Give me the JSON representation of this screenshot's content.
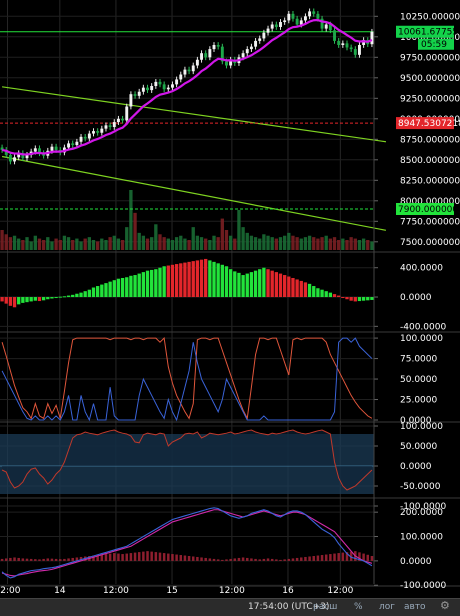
{
  "colors": {
    "up": "#22e33b",
    "down": "#e3262b",
    "ema": "#d016e8",
    "trend": "#7ed321",
    "priceTag": "#13d24a",
    "redLine": "#e3262b",
    "rsiLine": "#e0563b",
    "stochBlue": "#3a63d8",
    "blueArea": "#1b3b55"
  },
  "statusbar": {
    "time": "17:54:00 (UTC+3)",
    "btn_range": "расш",
    "btn_pct": "%",
    "btn_log": "лог",
    "btn_auto": "авто",
    "gear": "gear-icon"
  },
  "chart_data": [
    {
      "type": "candlestick",
      "name": "price",
      "ylim": [
        7400,
        10400
      ],
      "yticks": [
        "10250.00000000",
        "10000.00000000",
        "9750.00000000",
        "9500.00000000",
        "9250.00000000",
        "9000.00000000",
        "8750.00000000",
        "8500.00000000",
        "8250.00000000",
        "8000.00000000",
        "7750.00000000",
        "7500.00000000"
      ],
      "ytick_values": [
        10250,
        10000,
        9750,
        9500,
        9250,
        9000,
        8750,
        8500,
        8250,
        8000,
        7750,
        7500
      ],
      "close": [
        8620,
        8560,
        8480,
        8530,
        8580,
        8520,
        8560,
        8600,
        8640,
        8580,
        8550,
        8610,
        8660,
        8620,
        8590,
        8650,
        8700,
        8680,
        8720,
        8780,
        8760,
        8820,
        8850,
        8830,
        8880,
        8920,
        8900,
        8960,
        9000,
        8980,
        9150,
        9300,
        9280,
        9330,
        9380,
        9350,
        9400,
        9450,
        9420,
        9360,
        9380,
        9420,
        9480,
        9540,
        9600,
        9580,
        9650,
        9720,
        9800,
        9750,
        9850,
        9900,
        9880,
        9700,
        9650,
        9720,
        9680,
        9750,
        9800,
        9850,
        9880,
        9950,
        9980,
        10050,
        10100,
        10150,
        10120,
        10180,
        10200,
        10280,
        10220,
        10150,
        10200,
        10250,
        10310,
        10280,
        10220,
        10100,
        10150,
        10080,
        9950,
        9900,
        9920,
        9870,
        9850,
        9780,
        9900,
        9960,
        9910,
        10061
      ],
      "open": [
        8650,
        8620,
        8560,
        8480,
        8530,
        8580,
        8520,
        8560,
        8600,
        8640,
        8580,
        8550,
        8610,
        8660,
        8620,
        8590,
        8650,
        8700,
        8680,
        8720,
        8780,
        8760,
        8820,
        8850,
        8830,
        8880,
        8920,
        8900,
        8960,
        9000,
        8980,
        9150,
        9300,
        9280,
        9330,
        9380,
        9350,
        9400,
        9450,
        9420,
        9360,
        9380,
        9420,
        9480,
        9540,
        9600,
        9580,
        9650,
        9720,
        9800,
        9750,
        9850,
        9900,
        9880,
        9700,
        9650,
        9720,
        9680,
        9750,
        9800,
        9850,
        9880,
        9950,
        9980,
        10050,
        10100,
        10150,
        10120,
        10180,
        10200,
        10280,
        10220,
        10150,
        10200,
        10250,
        10310,
        10280,
        10220,
        10100,
        10150,
        10080,
        9950,
        9900,
        9920,
        9870,
        9850,
        9780,
        9900,
        9960,
        9910
      ],
      "volume": [
        1.4,
        1.1,
        0.9,
        1.0,
        0.8,
        0.7,
        0.9,
        0.6,
        1.0,
        0.8,
        0.7,
        0.9,
        0.6,
        0.8,
        0.7,
        1.0,
        0.9,
        0.7,
        0.8,
        0.6,
        0.8,
        0.9,
        0.7,
        0.6,
        0.8,
        0.7,
        0.9,
        1.0,
        0.8,
        0.7,
        1.6,
        4.2,
        2.6,
        1.2,
        1.0,
        0.8,
        0.9,
        1.8,
        1.1,
        0.9,
        0.8,
        0.7,
        0.9,
        1.0,
        0.8,
        0.7,
        1.6,
        1.0,
        0.9,
        0.8,
        0.7,
        1.0,
        0.9,
        2.2,
        1.4,
        1.0,
        0.8,
        2.8,
        1.6,
        1.2,
        1.0,
        0.9,
        0.8,
        1.1,
        1.0,
        0.9,
        0.8,
        0.9,
        1.0,
        1.2,
        1.0,
        0.9,
        0.8,
        0.9,
        1.0,
        0.9,
        0.8,
        0.9,
        1.0,
        0.8,
        0.9,
        0.7,
        0.8,
        0.7,
        0.9,
        0.8,
        0.7,
        0.8,
        0.7,
        0.6
      ],
      "price_tag": "10061.67755855",
      "price_sub": "05:59",
      "red_level": 8947.53072182,
      "red_tag": "8947.53072182",
      "green_level": 7900,
      "green_tag": "7900.00000000",
      "trendlines": [
        {
          "x0": 0,
          "y0": 9390,
          "x1": 89,
          "y1": 8720
        },
        {
          "x0": 0,
          "y0": 8540,
          "x1": 89,
          "y1": 7640
        }
      ]
    },
    {
      "type": "bar",
      "name": "macd_histogram",
      "ylim": [
        -450,
        560
      ],
      "yticks": [
        "400.0000",
        "0.0000",
        "-400.0000"
      ],
      "ytick_values": [
        400,
        0,
        -400
      ],
      "values": [
        -60,
        -90,
        -120,
        -140,
        -100,
        -80,
        -70,
        -60,
        -50,
        -55,
        -45,
        -30,
        -20,
        -10,
        5,
        10,
        20,
        30,
        45,
        60,
        80,
        100,
        130,
        150,
        170,
        190,
        210,
        230,
        250,
        260,
        270,
        290,
        300,
        320,
        340,
        360,
        370,
        380,
        400,
        420,
        430,
        440,
        450,
        460,
        470,
        480,
        490,
        500,
        510,
        520,
        500,
        480,
        460,
        440,
        420,
        380,
        350,
        330,
        300,
        320,
        340,
        360,
        380,
        400,
        380,
        360,
        340,
        320,
        300,
        280,
        260,
        240,
        220,
        200,
        180,
        150,
        120,
        100,
        80,
        60,
        40,
        20,
        -10,
        -30,
        -50,
        -60,
        -55,
        -50,
        -45,
        -40
      ],
      "up_flags": [
        0,
        0,
        0,
        0,
        1,
        1,
        1,
        1,
        1,
        0,
        1,
        1,
        1,
        1,
        1,
        1,
        1,
        1,
        1,
        1,
        1,
        1,
        1,
        1,
        1,
        1,
        1,
        1,
        1,
        1,
        1,
        1,
        1,
        1,
        1,
        1,
        1,
        1,
        1,
        1,
        0,
        0,
        0,
        0,
        0,
        0,
        0,
        0,
        0,
        0,
        1,
        1,
        1,
        1,
        1,
        1,
        1,
        1,
        1,
        1,
        1,
        1,
        1,
        1,
        0,
        0,
        0,
        0,
        0,
        0,
        0,
        0,
        0,
        0,
        1,
        1,
        1,
        1,
        1,
        1,
        0,
        0,
        0,
        0,
        0,
        0,
        1,
        1,
        1,
        1
      ]
    },
    {
      "type": "line",
      "name": "stochastic",
      "ylim": [
        0,
        105
      ],
      "yticks": [
        "100.0000",
        "75.0000",
        "50.0000",
        "25.0000",
        "0.0000"
      ],
      "ytick_values": [
        100,
        75,
        50,
        25,
        0
      ],
      "series": [
        {
          "color": "#e0563b",
          "values": [
            95,
            78,
            60,
            42,
            28,
            15,
            10,
            2,
            20,
            5,
            2,
            20,
            8,
            18,
            2,
            35,
            70,
            98,
            100,
            100,
            100,
            100,
            100,
            100,
            100,
            100,
            98,
            100,
            100,
            100,
            100,
            98,
            100,
            100,
            98,
            100,
            100,
            100,
            95,
            100,
            65,
            45,
            30,
            20,
            10,
            2,
            20,
            98,
            100,
            100,
            98,
            100,
            100,
            85,
            70,
            55,
            40,
            25,
            12,
            2,
            40,
            80,
            100,
            100,
            98,
            100,
            100,
            85,
            70,
            55,
            98,
            100,
            98,
            100,
            100,
            100,
            100,
            100,
            95,
            80,
            70,
            60,
            50,
            40,
            30,
            22,
            15,
            10,
            5,
            2
          ]
        },
        {
          "color": "#3a63d8",
          "values": [
            60,
            50,
            40,
            30,
            20,
            10,
            2,
            0,
            5,
            0,
            0,
            5,
            0,
            5,
            0,
            10,
            30,
            0,
            0,
            30,
            10,
            0,
            20,
            0,
            0,
            0,
            40,
            5,
            0,
            0,
            0,
            0,
            0,
            30,
            50,
            40,
            30,
            20,
            10,
            2,
            25,
            10,
            0,
            20,
            40,
            60,
            95,
            70,
            50,
            40,
            30,
            20,
            10,
            25,
            50,
            40,
            30,
            20,
            10,
            0,
            0,
            0,
            0,
            5,
            0,
            0,
            0,
            0,
            0,
            0,
            0,
            0,
            0,
            0,
            0,
            0,
            0,
            0,
            0,
            0,
            10,
            95,
            100,
            100,
            95,
            100,
            90,
            85,
            80,
            75
          ]
        }
      ]
    },
    {
      "type": "area",
      "name": "rsi_band",
      "ylim": [
        -75,
        105
      ],
      "yticks": [
        "100.0000",
        "50.0000",
        "0.0000",
        "-50.0000",
        "-100.0000"
      ],
      "ytick_values": [
        100,
        50,
        0,
        -50,
        -100
      ],
      "values": [
        -10,
        -15,
        -40,
        -55,
        -50,
        -40,
        -20,
        -8,
        -5,
        -20,
        -30,
        -45,
        -35,
        -20,
        -10,
        10,
        40,
        70,
        78,
        80,
        85,
        82,
        80,
        78,
        82,
        85,
        88,
        90,
        85,
        82,
        80,
        75,
        60,
        58,
        78,
        82,
        80,
        78,
        82,
        80,
        50,
        60,
        65,
        70,
        80,
        82,
        80,
        85,
        70,
        75,
        82,
        80,
        78,
        80,
        82,
        85,
        80,
        82,
        85,
        88,
        90,
        85,
        82,
        80,
        78,
        82,
        80,
        82,
        85,
        88,
        90,
        85,
        82,
        80,
        82,
        85,
        88,
        90,
        85,
        80,
        10,
        -30,
        -50,
        -60,
        -55,
        -50,
        -40,
        -30,
        -20,
        -10
      ]
    },
    {
      "type": "line",
      "name": "ppo",
      "ylim": [
        -95,
        250
      ],
      "yticks": [
        "200.0000",
        "100.0000",
        "0.0000",
        "-100.0000"
      ],
      "ytick_values": [
        200,
        100,
        0,
        -100
      ],
      "series": [
        {
          "color": "#d02aa8",
          "values": [
            -50,
            -55,
            -60,
            -62,
            -58,
            -55,
            -52,
            -48,
            -45,
            -42,
            -40,
            -38,
            -35,
            -30,
            -25,
            -20,
            -15,
            -10,
            -5,
            0,
            5,
            10,
            15,
            20,
            25,
            30,
            35,
            40,
            45,
            50,
            55,
            60,
            70,
            80,
            90,
            100,
            110,
            120,
            130,
            140,
            150,
            160,
            165,
            170,
            175,
            180,
            185,
            190,
            195,
            200,
            205,
            210,
            210,
            205,
            200,
            195,
            190,
            185,
            180,
            185,
            190,
            195,
            200,
            205,
            200,
            195,
            190,
            185,
            190,
            195,
            200,
            200,
            195,
            190,
            180,
            170,
            160,
            150,
            140,
            130,
            120,
            100,
            80,
            60,
            40,
            20,
            10,
            0,
            -5,
            -10
          ]
        },
        {
          "color": "#3a63d8",
          "values": [
            -45,
            -60,
            -70,
            -65,
            -55,
            -50,
            -45,
            -40,
            -38,
            -36,
            -32,
            -30,
            -28,
            -25,
            -20,
            -15,
            -10,
            -5,
            0,
            5,
            10,
            15,
            20,
            25,
            30,
            35,
            40,
            45,
            50,
            55,
            60,
            70,
            80,
            90,
            100,
            110,
            120,
            130,
            140,
            150,
            160,
            170,
            175,
            180,
            185,
            190,
            195,
            200,
            205,
            210,
            215,
            218,
            215,
            205,
            195,
            185,
            180,
            175,
            180,
            185,
            195,
            200,
            205,
            210,
            205,
            195,
            185,
            180,
            190,
            200,
            205,
            205,
            200,
            190,
            175,
            160,
            145,
            130,
            120,
            110,
            95,
            70,
            50,
            30,
            15,
            10,
            5,
            0,
            -10,
            -20
          ]
        }
      ],
      "bars": [
        8,
        10,
        12,
        14,
        12,
        10,
        9,
        8,
        7,
        6,
        8,
        10,
        9,
        8,
        7,
        8,
        10,
        12,
        14,
        16,
        18,
        20,
        22,
        24,
        26,
        28,
        30,
        32,
        30,
        28,
        30,
        32,
        34,
        36,
        38,
        40,
        38,
        36,
        34,
        32,
        30,
        28,
        26,
        24,
        22,
        20,
        18,
        16,
        14,
        12,
        10,
        8,
        6,
        4,
        6,
        8,
        10,
        12,
        14,
        12,
        10,
        8,
        6,
        8,
        10,
        8,
        6,
        4,
        6,
        8,
        10,
        12,
        14,
        16,
        18,
        20,
        22,
        24,
        26,
        28,
        30,
        32,
        34,
        36,
        38,
        40,
        35,
        30,
        25,
        20
      ]
    }
  ],
  "xaxis": {
    "labels": [
      "12:00",
      "14",
      "12:00",
      "15",
      "12:00",
      "16",
      "12:00"
    ],
    "positions": [
      0.02,
      0.16,
      0.31,
      0.46,
      0.62,
      0.77,
      0.91
    ]
  }
}
